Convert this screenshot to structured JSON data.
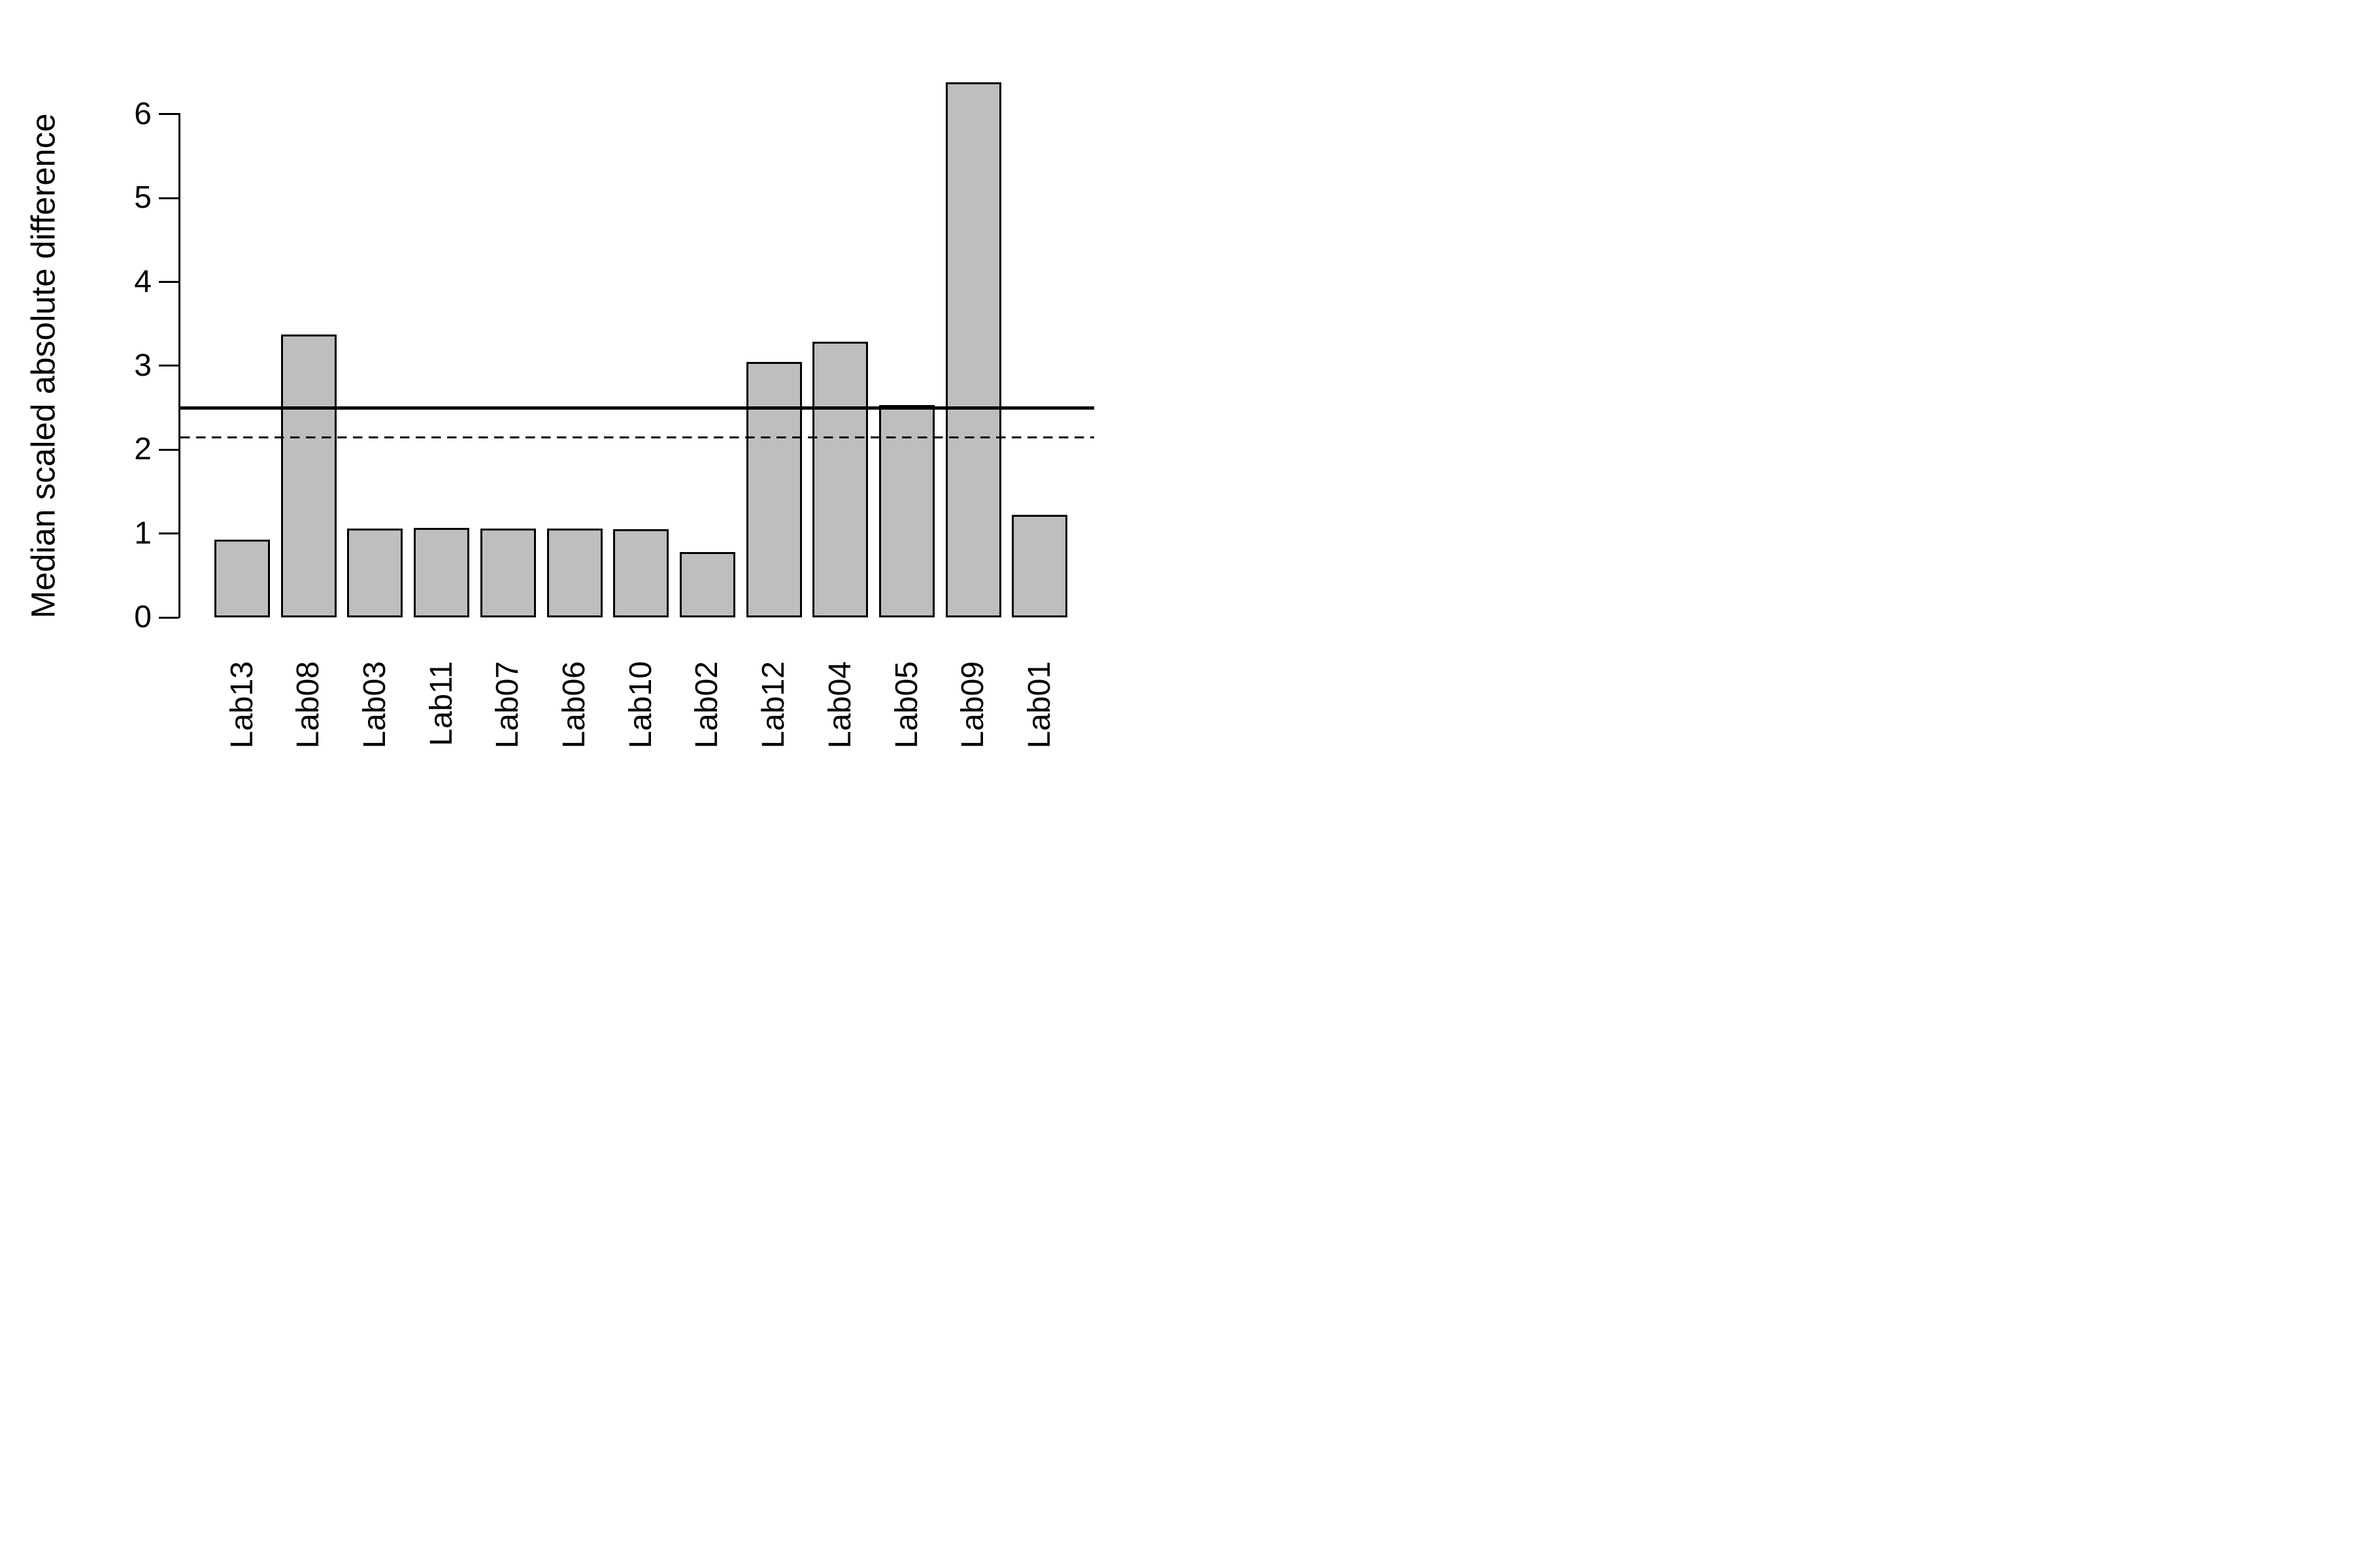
{
  "chart_data": {
    "type": "bar",
    "title": "",
    "xlabel": "",
    "ylabel": "Median scaled absolute difference",
    "categories": [
      "Lab13",
      "Lab08",
      "Lab03",
      "Lab11",
      "Lab07",
      "Lab06",
      "Lab10",
      "Lab02",
      "Lab12",
      "Lab04",
      "Lab05",
      "Lab09",
      "Lab01"
    ],
    "values": [
      0.93,
      3.37,
      1.06,
      1.07,
      1.06,
      1.06,
      1.05,
      0.78,
      3.05,
      3.29,
      2.53,
      6.38,
      1.22
    ],
    "yticks": [
      "0",
      "1",
      "2",
      "3",
      "4",
      "5",
      "6"
    ],
    "ylim": [
      0,
      6.5
    ],
    "reference_lines": [
      {
        "value": 2.5,
        "style": "solid"
      },
      {
        "value": 2.15,
        "style": "dashed"
      }
    ],
    "grid": false,
    "legend_position": "none",
    "bar_fill_color": "#BEBEBE",
    "bar_border_color": "#000000",
    "axis_color": "#000000",
    "text_color": "#000000",
    "background_color": "#FFFFFF"
  }
}
